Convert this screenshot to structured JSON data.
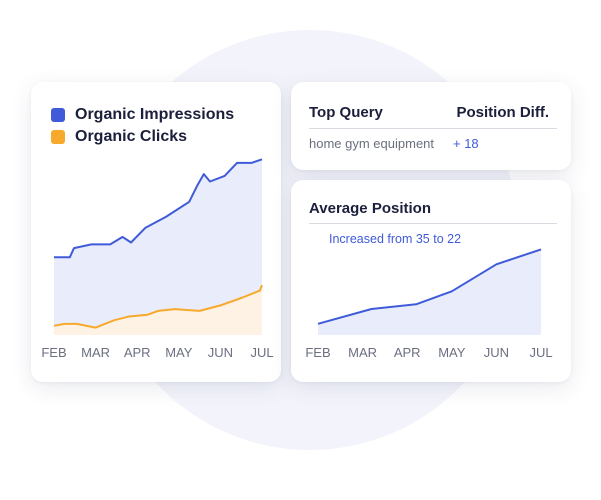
{
  "colors": {
    "impressions": "#3f5bd9",
    "impressions_fill": "#e9edfb",
    "clicks": "#f7a92c",
    "clicks_fill": "#fdf2e4",
    "position": "#3f5bd9",
    "position_fill": "#e9edfb",
    "tick_label": "#6b6f80"
  },
  "left_card": {
    "legend": [
      {
        "label": "Organic Impressions",
        "color": "#3f5bd9"
      },
      {
        "label": "Organic Clicks",
        "color": "#f7a92c"
      }
    ]
  },
  "top_query": {
    "headers": {
      "query": "Top Query",
      "position": "Position Diff."
    },
    "row": {
      "query": "home gym equipment",
      "diff": "+ 18"
    }
  },
  "avg_position": {
    "title": "Average Position",
    "annotation": "Increased from 35 to 22"
  },
  "chart_data": [
    {
      "type": "area",
      "categories": [
        "FEB",
        "MAR",
        "APR",
        "MAY",
        "JUN",
        "JUL"
      ],
      "x_range": [
        0,
        5
      ],
      "ylim": [
        0,
        100
      ],
      "grid": false,
      "legend": "top-left",
      "series": [
        {
          "name": "Organic Impressions",
          "x": [
            0,
            0.38,
            0.48,
            0.9,
            1.35,
            1.65,
            1.85,
            2.2,
            2.7,
            3.25,
            3.45,
            3.6,
            3.75,
            4.1,
            4.4,
            4.75,
            5.0
          ],
          "values": [
            42,
            42,
            47,
            49,
            49,
            53,
            50,
            58,
            64,
            72,
            81,
            87,
            83,
            86,
            93,
            93,
            95
          ]
        },
        {
          "name": "Organic Clicks",
          "x": [
            0,
            0.25,
            0.55,
            1.0,
            1.45,
            1.8,
            2.25,
            2.5,
            2.9,
            3.5,
            4.0,
            4.5,
            4.95,
            5.0
          ],
          "values": [
            5,
            6,
            6,
            4,
            8,
            10,
            11,
            13,
            14,
            13,
            16,
            20,
            24,
            27
          ]
        }
      ]
    },
    {
      "type": "area",
      "title": "Average Position",
      "categories": [
        "FEB",
        "MAR",
        "APR",
        "MAY",
        "JUN",
        "JUL"
      ],
      "x_range": [
        0,
        5
      ],
      "ylim": [
        0,
        100
      ],
      "grid": false,
      "series": [
        {
          "x": [
            0,
            1.2,
            2.2,
            3.0,
            4.0,
            5.0
          ],
          "values": [
            12,
            28,
            33,
            47,
            76,
            92
          ]
        }
      ]
    }
  ]
}
